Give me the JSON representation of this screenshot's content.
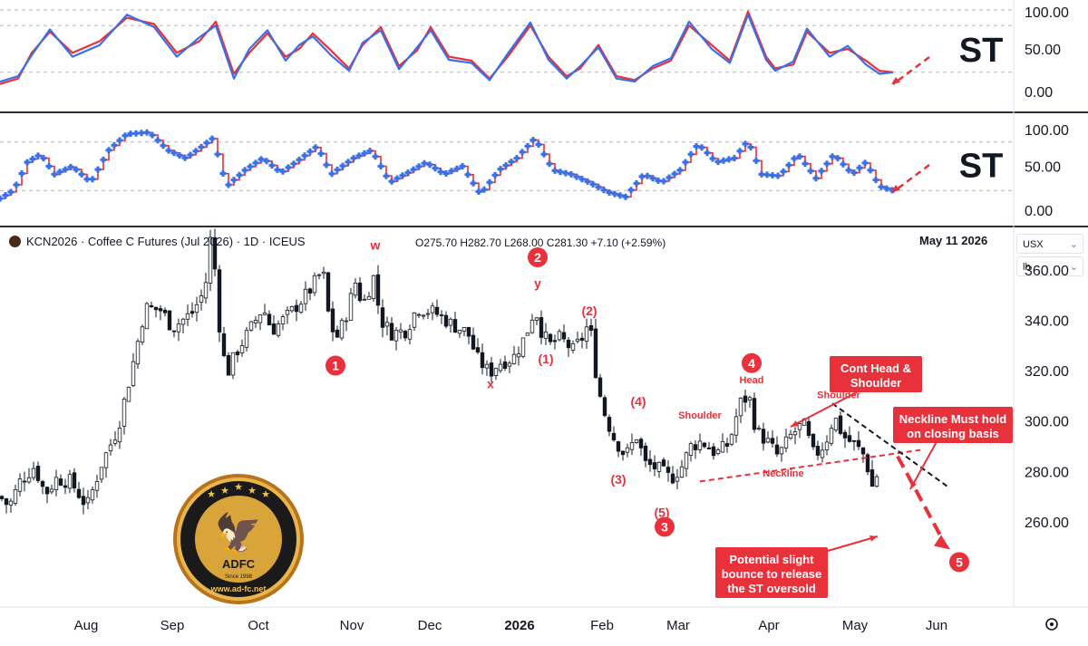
{
  "header": {
    "instrument": "KCN2026 · Coffee C Futures (Jul 2026) · 1D · ICEUS",
    "ohlc": "O275.70  H282.70  L268.00  C281.30  +7.10 (+2.59%)",
    "date": "May 11 2026"
  },
  "scale_controls": {
    "currency": "USX",
    "unit": "lb"
  },
  "oscillator_label": "ST",
  "badge": {
    "brand": "ADFC",
    "since": "Since 1998",
    "url": "www.ad-fc.net"
  },
  "colors": {
    "up": "#000000",
    "down": "#000000",
    "st_red": "#e8313a",
    "st_blue": "#3a6fe8",
    "annot": "#e8313a"
  },
  "chart_data": {
    "type": "candlestick",
    "price_axis": {
      "ticks": [
        "360.00",
        "340.00",
        "320.00",
        "300.00",
        "280.00",
        "260.00"
      ],
      "ylim": [
        247,
        378
      ]
    },
    "osc_axis": {
      "ticks": [
        "100.00",
        "50.00",
        "0.00"
      ],
      "ylim": [
        0,
        100
      ]
    },
    "x_axis": {
      "ticks": [
        "Aug",
        "Sep",
        "Oct",
        "Nov",
        "Dec",
        "2026",
        "Feb",
        "Mar",
        "Apr",
        "May",
        "Jun"
      ]
    },
    "price_path": [
      [
        0,
        270
      ],
      [
        10,
        266
      ],
      [
        22,
        276
      ],
      [
        38,
        282
      ],
      [
        50,
        271
      ],
      [
        62,
        277
      ],
      [
        78,
        276
      ],
      [
        96,
        266
      ],
      [
        112,
        283
      ],
      [
        130,
        297
      ],
      [
        145,
        320
      ],
      [
        160,
        345
      ],
      [
        178,
        344
      ],
      [
        190,
        337
      ],
      [
        212,
        343
      ],
      [
        226,
        352
      ],
      [
        232,
        372
      ],
      [
        238,
        358
      ],
      [
        244,
        328
      ],
      [
        252,
        320
      ],
      [
        260,
        327
      ],
      [
        272,
        334
      ],
      [
        290,
        345
      ],
      [
        300,
        336
      ],
      [
        318,
        342
      ],
      [
        340,
        351
      ],
      [
        356,
        360
      ],
      [
        362,
        343
      ],
      [
        370,
        332
      ],
      [
        380,
        340
      ],
      [
        392,
        355
      ],
      [
        400,
        346
      ],
      [
        412,
        357
      ],
      [
        420,
        340
      ],
      [
        432,
        335
      ],
      [
        448,
        336
      ],
      [
        460,
        345
      ],
      [
        480,
        343
      ],
      [
        500,
        338
      ],
      [
        516,
        335
      ],
      [
        526,
        325
      ],
      [
        540,
        319
      ],
      [
        550,
        323
      ],
      [
        566,
        325
      ],
      [
        580,
        334
      ],
      [
        590,
        345
      ],
      [
        597,
        336
      ],
      [
        606,
        330
      ],
      [
        618,
        333
      ],
      [
        632,
        328
      ],
      [
        644,
        334
      ],
      [
        650,
        340
      ],
      [
        656,
        322
      ],
      [
        664,
        306
      ],
      [
        676,
        294
      ],
      [
        690,
        286
      ],
      [
        702,
        294
      ],
      [
        712,
        283
      ],
      [
        726,
        281
      ],
      [
        740,
        277
      ],
      [
        752,
        282
      ],
      [
        762,
        290
      ],
      [
        774,
        292
      ],
      [
        790,
        287
      ],
      [
        804,
        291
      ],
      [
        816,
        307
      ],
      [
        826,
        310
      ],
      [
        834,
        296
      ],
      [
        846,
        292
      ],
      [
        858,
        286
      ],
      [
        872,
        294
      ],
      [
        886,
        299
      ],
      [
        898,
        286
      ],
      [
        910,
        291
      ],
      [
        920,
        302
      ],
      [
        930,
        294
      ],
      [
        944,
        290
      ],
      [
        954,
        286
      ],
      [
        962,
        274
      ],
      [
        970,
        281
      ]
    ],
    "st_top": {
      "red": [
        [
          0,
          5
        ],
        [
          20,
          12
        ],
        [
          35,
          45
        ],
        [
          55,
          72
        ],
        [
          80,
          45
        ],
        [
          110,
          60
        ],
        [
          140,
          90
        ],
        [
          170,
          82
        ],
        [
          195,
          45
        ],
        [
          220,
          60
        ],
        [
          238,
          85
        ],
        [
          258,
          18
        ],
        [
          275,
          45
        ],
        [
          295,
          70
        ],
        [
          315,
          40
        ],
        [
          330,
          50
        ],
        [
          345,
          70
        ],
        [
          365,
          48
        ],
        [
          385,
          25
        ],
        [
          400,
          55
        ],
        [
          420,
          78
        ],
        [
          440,
          28
        ],
        [
          460,
          48
        ],
        [
          475,
          78
        ],
        [
          495,
          40
        ],
        [
          520,
          35
        ],
        [
          540,
          12
        ],
        [
          560,
          40
        ],
        [
          585,
          80
        ],
        [
          605,
          40
        ],
        [
          625,
          15
        ],
        [
          640,
          25
        ],
        [
          660,
          55
        ],
        [
          680,
          15
        ],
        [
          700,
          10
        ],
        [
          720,
          25
        ],
        [
          740,
          35
        ],
        [
          760,
          80
        ],
        [
          785,
          55
        ],
        [
          805,
          35
        ],
        [
          825,
          98
        ],
        [
          845,
          40
        ],
        [
          855,
          25
        ],
        [
          875,
          30
        ],
        [
          890,
          72
        ],
        [
          915,
          45
        ],
        [
          935,
          50
        ],
        [
          955,
          35
        ],
        [
          970,
          22
        ],
        [
          985,
          20
        ]
      ],
      "blue": [
        [
          0,
          8
        ],
        [
          20,
          15
        ],
        [
          35,
          42
        ],
        [
          55,
          75
        ],
        [
          80,
          40
        ],
        [
          110,
          55
        ],
        [
          140,
          94
        ],
        [
          170,
          78
        ],
        [
          195,
          40
        ],
        [
          220,
          65
        ],
        [
          238,
          80
        ],
        [
          258,
          12
        ],
        [
          275,
          50
        ],
        [
          295,
          74
        ],
        [
          315,
          35
        ],
        [
          330,
          55
        ],
        [
          345,
          66
        ],
        [
          365,
          42
        ],
        [
          385,
          22
        ],
        [
          400,
          58
        ],
        [
          420,
          74
        ],
        [
          440,
          24
        ],
        [
          460,
          52
        ],
        [
          475,
          74
        ],
        [
          495,
          36
        ],
        [
          520,
          32
        ],
        [
          540,
          10
        ],
        [
          560,
          44
        ],
        [
          585,
          84
        ],
        [
          605,
          36
        ],
        [
          625,
          12
        ],
        [
          640,
          28
        ],
        [
          660,
          52
        ],
        [
          680,
          12
        ],
        [
          700,
          8
        ],
        [
          720,
          28
        ],
        [
          740,
          38
        ],
        [
          760,
          85
        ],
        [
          785,
          50
        ],
        [
          805,
          32
        ],
        [
          825,
          94
        ],
        [
          845,
          36
        ],
        [
          855,
          22
        ],
        [
          875,
          34
        ],
        [
          890,
          76
        ],
        [
          915,
          40
        ],
        [
          935,
          54
        ],
        [
          955,
          30
        ],
        [
          970,
          18
        ],
        [
          985,
          20
        ]
      ]
    },
    "st_bottom": [
      [
        0,
        10
      ],
      [
        15,
        20
      ],
      [
        30,
        55
      ],
      [
        45,
        65
      ],
      [
        60,
        40
      ],
      [
        80,
        50
      ],
      [
        100,
        30
      ],
      [
        120,
        70
      ],
      [
        140,
        90
      ],
      [
        165,
        92
      ],
      [
        185,
        70
      ],
      [
        205,
        60
      ],
      [
        220,
        72
      ],
      [
        235,
        85
      ],
      [
        250,
        25
      ],
      [
        270,
        45
      ],
      [
        290,
        60
      ],
      [
        310,
        42
      ],
      [
        330,
        58
      ],
      [
        350,
        75
      ],
      [
        365,
        40
      ],
      [
        390,
        60
      ],
      [
        410,
        70
      ],
      [
        430,
        30
      ],
      [
        450,
        42
      ],
      [
        470,
        55
      ],
      [
        490,
        40
      ],
      [
        510,
        50
      ],
      [
        530,
        15
      ],
      [
        550,
        45
      ],
      [
        570,
        60
      ],
      [
        590,
        85
      ],
      [
        610,
        45
      ],
      [
        630,
        40
      ],
      [
        650,
        30
      ],
      [
        670,
        18
      ],
      [
        690,
        12
      ],
      [
        710,
        40
      ],
      [
        730,
        30
      ],
      [
        750,
        45
      ],
      [
        770,
        78
      ],
      [
        790,
        55
      ],
      [
        810,
        60
      ],
      [
        825,
        82
      ],
      [
        840,
        40
      ],
      [
        860,
        38
      ],
      [
        880,
        65
      ],
      [
        900,
        35
      ],
      [
        920,
        65
      ],
      [
        940,
        40
      ],
      [
        955,
        55
      ],
      [
        970,
        25
      ],
      [
        985,
        20
      ]
    ],
    "annotations": [
      {
        "text": "w",
        "price": 368
      },
      {
        "text": "1",
        "price": 322
      },
      {
        "text": "x",
        "price": 313
      },
      {
        "text": "2",
        "price": 365
      },
      {
        "text": "y",
        "price": 353
      },
      {
        "text": "(2)",
        "price": 342
      },
      {
        "text": "(1)",
        "price": 323
      },
      {
        "text": "(4)",
        "price": 306
      },
      {
        "text": "(3)",
        "price": 275
      },
      {
        "text": "(5)",
        "price": 262
      },
      {
        "text": "3",
        "price": 258
      },
      {
        "text": "4",
        "price": 323
      },
      {
        "text": "Head",
        "price": 315
      },
      {
        "text": "Shoulder",
        "price": 301
      },
      {
        "text": "Shoulder",
        "price": 309
      },
      {
        "text": "Neckline",
        "price": 278
      },
      {
        "text": "5",
        "price": 244
      }
    ],
    "callouts": [
      {
        "lines": [
          "Cont Head &",
          "Shoulder"
        ]
      },
      {
        "lines": [
          "Neckline Must hold",
          "on closing basis"
        ]
      },
      {
        "lines": [
          "Potential slight",
          "bounce to release",
          "the ST oversold"
        ]
      }
    ]
  }
}
